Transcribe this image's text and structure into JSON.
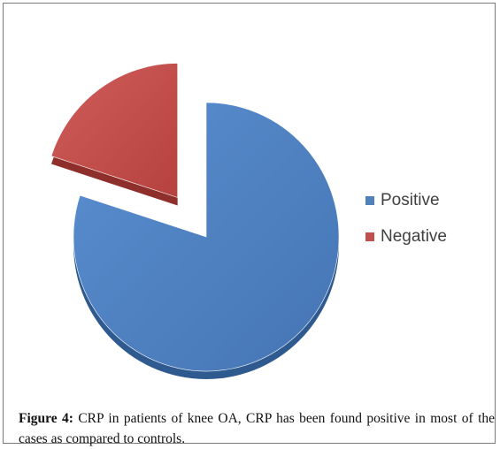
{
  "chart_data": {
    "type": "pie",
    "exploded": true,
    "three_d": true,
    "start_clockwise_from": "12 o'clock",
    "slices": [
      {
        "label": "Positive",
        "value": 80,
        "color": "#4f81bd"
      },
      {
        "label": "Negative",
        "value": 20,
        "color": "#c0504d"
      }
    ],
    "legend_placement": "right"
  },
  "caption": {
    "label": "Figure 4:",
    "text": "CRP in patients of knee OA, CRP has been found positive in most of the cases as compared to controls."
  }
}
